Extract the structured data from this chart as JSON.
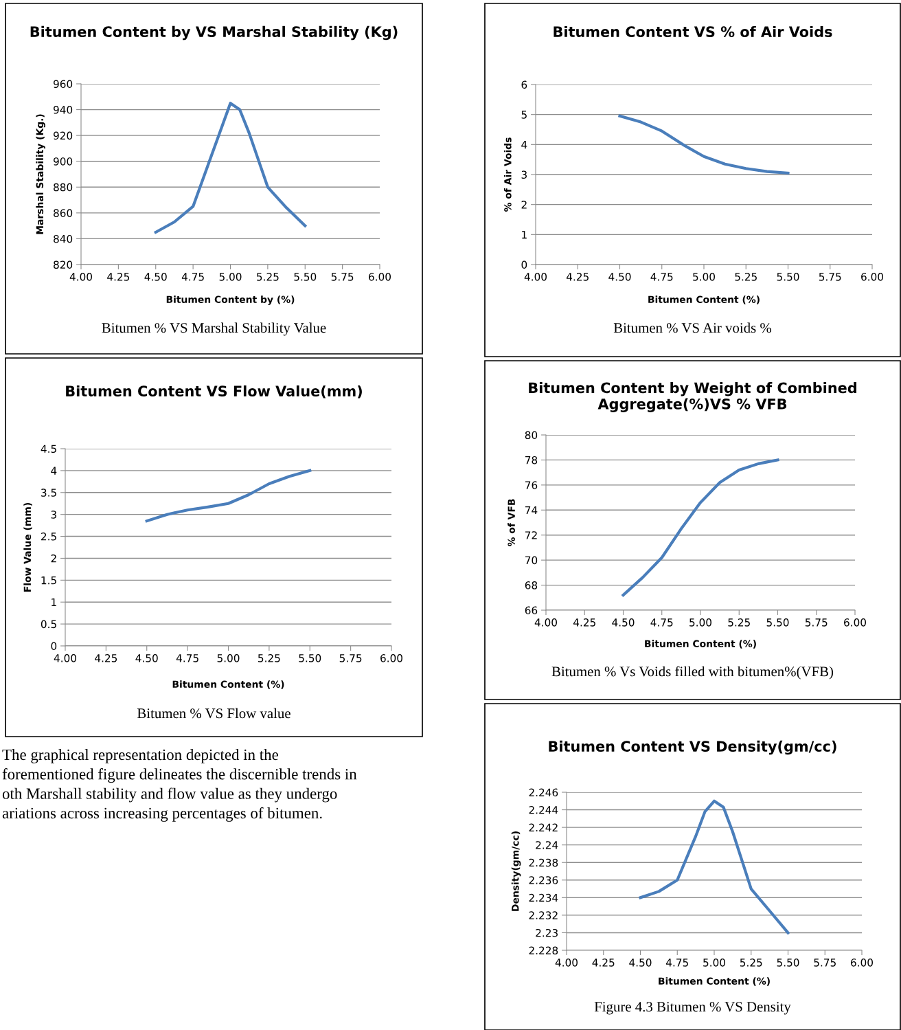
{
  "chart_data": [
    {
      "type": "line",
      "title": "Bitumen Content by VS Marshal Stability (Kg)",
      "xlabel": "Bitumen Content by (%)",
      "ylabel": "Marshal Stability (Kg.)",
      "series": [
        {
          "color": "#4a7ebb",
          "x": [
            4.5,
            4.625,
            4.75,
            4.875,
            5.0,
            5.0625,
            5.125,
            5.25,
            5.375,
            5.5
          ],
          "values": [
            845,
            853,
            865,
            905,
            945,
            940,
            922,
            880,
            864,
            850
          ]
        }
      ],
      "xlim": [
        4.0,
        6.0
      ],
      "xticks": [
        {
          "value": 4.0,
          "label": "4.00"
        },
        {
          "value": 4.25,
          "label": "4.25"
        },
        {
          "value": 4.5,
          "label": "4.50"
        },
        {
          "value": 4.75,
          "label": "4.75"
        },
        {
          "value": 5.0,
          "label": "5.00"
        },
        {
          "value": 5.25,
          "label": "5.25"
        },
        {
          "value": 5.5,
          "label": "5.50"
        },
        {
          "value": 5.75,
          "label": "5.75"
        },
        {
          "value": 6.0,
          "label": "6.00"
        }
      ],
      "ylim": [
        820,
        960
      ],
      "yticks": [
        820,
        840,
        860,
        880,
        900,
        920,
        940,
        960
      ],
      "grid": "y",
      "legend": false,
      "marker": "none",
      "line_style": "solid",
      "annotations": [
        "Bitumen % VS Marshal Stability Value"
      ]
    },
    {
      "type": "line",
      "title": "Bitumen Content VS % of Air Voids",
      "xlabel": "Bitumen Content (%)",
      "ylabel": "% of Air Voids",
      "series": [
        {
          "color": "#4a7ebb",
          "x": [
            4.5,
            4.625,
            4.75,
            4.875,
            5.0,
            5.125,
            5.25,
            5.375,
            5.5
          ],
          "values": [
            4.95,
            4.75,
            4.45,
            4.0,
            3.6,
            3.35,
            3.2,
            3.1,
            3.05
          ]
        }
      ],
      "xlim": [
        4.0,
        6.0
      ],
      "xticks": [
        {
          "value": 4.0,
          "label": "4.00"
        },
        {
          "value": 4.25,
          "label": "4.25"
        },
        {
          "value": 4.5,
          "label": "4.50"
        },
        {
          "value": 4.75,
          "label": "4.75"
        },
        {
          "value": 5.0,
          "label": "5.00"
        },
        {
          "value": 5.25,
          "label": "5.25"
        },
        {
          "value": 5.5,
          "label": "5.50"
        },
        {
          "value": 5.75,
          "label": "5.75"
        },
        {
          "value": 6.0,
          "label": "6.00"
        }
      ],
      "ylim": [
        0,
        6
      ],
      "yticks": [
        0,
        1,
        2,
        3,
        4,
        5,
        6
      ],
      "grid": "y",
      "legend": false,
      "marker": "none",
      "line_style": "solid",
      "annotations": [
        "Bitumen % VS Air voids %"
      ]
    },
    {
      "type": "line",
      "title": "Bitumen Content VS Flow Value(mm)",
      "xlabel": "Bitumen Content (%)",
      "ylabel": "Flow Value (mm)",
      "series": [
        {
          "color": "#4a7ebb",
          "x": [
            4.5,
            4.625,
            4.75,
            4.875,
            5.0,
            5.125,
            5.25,
            5.375,
            5.5
          ],
          "values": [
            2.85,
            3.0,
            3.1,
            3.17,
            3.25,
            3.45,
            3.7,
            3.87,
            4.0
          ]
        }
      ],
      "xlim": [
        4.0,
        6.0
      ],
      "xticks": [
        {
          "value": 4.0,
          "label": "4.00"
        },
        {
          "value": 4.25,
          "label": "4.25"
        },
        {
          "value": 4.5,
          "label": "4.50"
        },
        {
          "value": 4.75,
          "label": "4.75"
        },
        {
          "value": 5.0,
          "label": "5.00"
        },
        {
          "value": 5.25,
          "label": "5.25"
        },
        {
          "value": 5.5,
          "label": "5.50"
        },
        {
          "value": 5.75,
          "label": "5.75"
        },
        {
          "value": 6.0,
          "label": "6.00"
        }
      ],
      "ylim": [
        0,
        4.5
      ],
      "yticks": [
        0,
        0.5,
        1,
        1.5,
        2,
        2.5,
        3,
        3.5,
        4,
        4.5
      ],
      "grid": "y",
      "legend": false,
      "marker": "none",
      "line_style": "solid",
      "annotations": [
        "Bitumen % VS Flow value",
        "The graphical representation depicted in the\nforementioned figure delineates the discernible trends in\noth Marshall stability and flow value as they undergo\nariations across increasing percentages of bitumen."
      ]
    },
    {
      "type": "line",
      "title": "Bitumen Content by Weight of Combined\nAggregate(%)VS % VFB",
      "xlabel": "Bitumen Content (%)",
      "ylabel": "% of VFB",
      "series": [
        {
          "color": "#4a7ebb",
          "x": [
            4.5,
            4.625,
            4.75,
            4.875,
            5.0,
            5.125,
            5.25,
            5.375,
            5.5
          ],
          "values": [
            67.2,
            68.6,
            70.2,
            72.5,
            74.6,
            76.2,
            77.2,
            77.7,
            78.0
          ]
        }
      ],
      "xlim": [
        4.0,
        6.0
      ],
      "xticks": [
        {
          "value": 4.0,
          "label": "4.00"
        },
        {
          "value": 4.25,
          "label": "4.25"
        },
        {
          "value": 4.5,
          "label": "4.50"
        },
        {
          "value": 4.75,
          "label": "4.75"
        },
        {
          "value": 5.0,
          "label": "5.00"
        },
        {
          "value": 5.25,
          "label": "5.25"
        },
        {
          "value": 5.5,
          "label": "5.50"
        },
        {
          "value": 5.75,
          "label": "5.75"
        },
        {
          "value": 6.0,
          "label": "6.00"
        }
      ],
      "ylim": [
        66,
        80
      ],
      "yticks": [
        66,
        68,
        70,
        72,
        74,
        76,
        78,
        80
      ],
      "grid": "y",
      "legend": false,
      "marker": "none",
      "line_style": "solid",
      "annotations": [
        "Bitumen % Vs Voids filled with bitumen%(VFB)"
      ]
    },
    {
      "type": "line",
      "title": "Bitumen Content VS Density(gm/cc)",
      "xlabel": "Bitumen Content (%)",
      "ylabel": "Density(gm/cc)",
      "series": [
        {
          "color": "#4a7ebb",
          "x": [
            4.5,
            4.625,
            4.75,
            4.875,
            4.9375,
            5.0,
            5.0625,
            5.125,
            5.25,
            5.375,
            5.5
          ],
          "values": [
            2.234,
            2.2347,
            2.236,
            2.241,
            2.2438,
            2.245,
            2.2443,
            2.2415,
            2.235,
            2.2325,
            2.23
          ]
        }
      ],
      "xlim": [
        4.0,
        6.0
      ],
      "xticks": [
        {
          "value": 4.0,
          "label": "4.00"
        },
        {
          "value": 4.25,
          "label": "4.25"
        },
        {
          "value": 4.5,
          "label": "4.50"
        },
        {
          "value": 4.75,
          "label": "4.75"
        },
        {
          "value": 5.0,
          "label": "5.00"
        },
        {
          "value": 5.25,
          "label": "5.25"
        },
        {
          "value": 5.5,
          "label": "5.50"
        },
        {
          "value": 5.75,
          "label": "5.75"
        },
        {
          "value": 6.0,
          "label": "6.00"
        }
      ],
      "ylim": [
        2.228,
        2.246
      ],
      "yticks": [
        2.228,
        {
          "value": 2.23,
          "label": "2.23"
        },
        2.232,
        2.234,
        2.236,
        2.238,
        {
          "value": 2.24,
          "label": "2.24"
        },
        2.242,
        2.244,
        2.246
      ],
      "grid": "y",
      "legend": false,
      "marker": "none",
      "line_style": "solid",
      "annotations": [
        "Figure 4.3 Bitumen % VS Density"
      ]
    }
  ]
}
